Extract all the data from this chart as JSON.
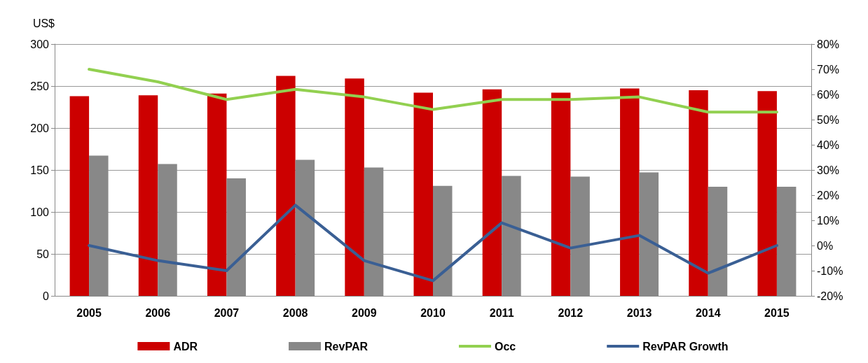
{
  "chart_data": {
    "type": "bar",
    "ylabel": "US$",
    "categories": [
      "2005",
      "2006",
      "2007",
      "2008",
      "2009",
      "2010",
      "2011",
      "2012",
      "2013",
      "2014",
      "2015"
    ],
    "series": [
      {
        "name": "ADR",
        "type": "bar",
        "color": "#cc0000",
        "values": [
          238,
          239,
          241,
          262,
          259,
          242,
          246,
          242,
          247,
          245,
          244
        ]
      },
      {
        "name": "RevPAR",
        "type": "bar",
        "color": "#888888",
        "values": [
          167,
          157,
          140,
          162,
          153,
          131,
          143,
          142,
          147,
          130,
          130
        ]
      },
      {
        "name": "Occ",
        "type": "line",
        "axis": "y2",
        "color": "#92d050",
        "values": [
          70,
          65,
          58,
          62,
          59,
          54,
          58,
          58,
          59,
          53,
          53
        ]
      },
      {
        "name": "RevPAR Growth",
        "type": "line",
        "axis": "y2",
        "color": "#3a5f94",
        "values": [
          0,
          -6,
          -10,
          16,
          -6,
          -14,
          9,
          -1,
          4,
          -11,
          0
        ]
      }
    ],
    "ylim": [
      0,
      300
    ],
    "yticks": [
      0,
      50,
      100,
      150,
      200,
      250,
      300
    ],
    "y2lim": [
      -20,
      80
    ],
    "y2ticks": [
      {
        "value": -20,
        "label": "-20%"
      },
      {
        "value": -10,
        "label": "-10%"
      },
      {
        "value": 0,
        "label": "0%"
      },
      {
        "value": 10,
        "label": "10%"
      },
      {
        "value": 20,
        "label": "20%"
      },
      {
        "value": 30,
        "label": "30%"
      },
      {
        "value": 40,
        "label": "40%"
      },
      {
        "value": 50,
        "label": "50%"
      },
      {
        "value": 60,
        "label": "60%"
      },
      {
        "value": 70,
        "label": "70%"
      },
      {
        "value": 80,
        "label": "80%"
      }
    ],
    "grid": "y",
    "legend": "bottom",
    "marker": "none",
    "line_style": "solid"
  }
}
